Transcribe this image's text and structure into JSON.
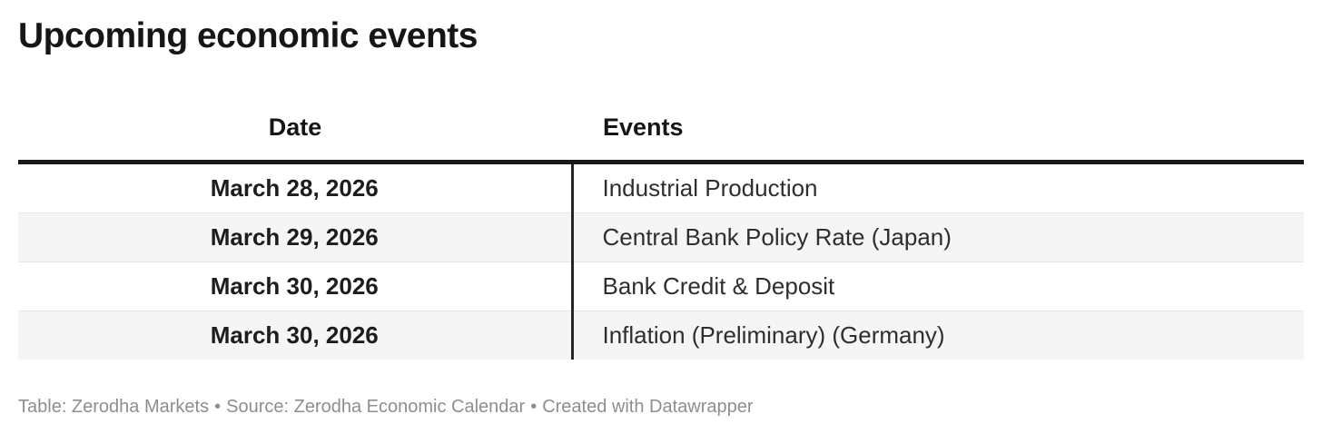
{
  "chart_data": {
    "type": "table",
    "title": "Upcoming economic events",
    "columns": [
      "Date",
      "Events"
    ],
    "rows": [
      [
        "March 28, 2026",
        "Industrial Production"
      ],
      [
        "March 29, 2026",
        "Central Bank Policy Rate (Japan)"
      ],
      [
        "March 30, 2026",
        "Bank Credit & Deposit"
      ],
      [
        "March 30, 2026",
        "Inflation (Preliminary) (Germany)"
      ]
    ],
    "layout": {
      "date_column_align": "center",
      "events_column_align": "left",
      "zebra_striping": true,
      "header_rule_color": "#191919",
      "column_divider_color": "#262626",
      "alt_row_color": "#f5f5f5",
      "separator_color": "#e6e6e6"
    }
  },
  "footer": {
    "parts": [
      "Table: Zerodha Markets",
      "Source: Zerodha Economic Calendar",
      "Created with Datawrapper"
    ],
    "separator": "•",
    "text_color": "#8e8e8e"
  }
}
